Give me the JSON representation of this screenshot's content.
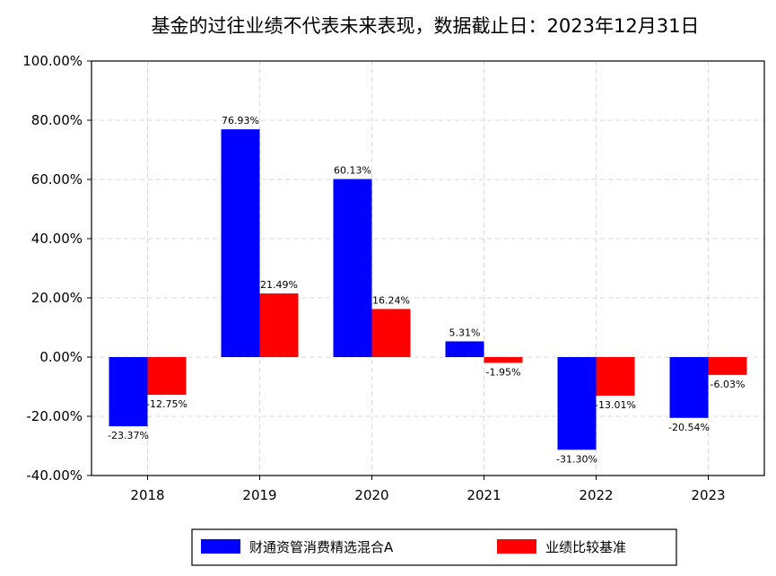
{
  "chart_data": {
    "type": "bar",
    "title": "基金的过往业绩不代表未来表现，数据截止日：2023年12月31日",
    "categories": [
      "2018",
      "2019",
      "2020",
      "2021",
      "2022",
      "2023"
    ],
    "series": [
      {
        "name": "财通资管消费精选混合A",
        "color": "#0000ff",
        "values": [
          -23.37,
          76.93,
          60.13,
          5.31,
          -31.3,
          -20.54
        ],
        "labels": [
          "-23.37%",
          "76.93%",
          "60.13%",
          "5.31%",
          "-31.30%",
          "-20.54%"
        ]
      },
      {
        "name": "业绩比较基准",
        "color": "#ff0000",
        "values": [
          -12.75,
          21.49,
          16.24,
          -1.95,
          -13.01,
          -6.03
        ],
        "labels": [
          "-12.75%",
          "21.49%",
          "16.24%",
          "-1.95%",
          "-13.01%",
          "-6.03%"
        ]
      }
    ],
    "ylim": [
      -40,
      100
    ],
    "yticks": [
      -40,
      -20,
      0,
      20,
      40,
      60,
      80,
      100
    ],
    "ytick_labels": [
      "-40.00%",
      "-20.00%",
      "0.00%",
      "20.00%",
      "40.00%",
      "60.00%",
      "80.00%",
      "100.00%"
    ],
    "grid": true,
    "legend": "bottom-center"
  }
}
